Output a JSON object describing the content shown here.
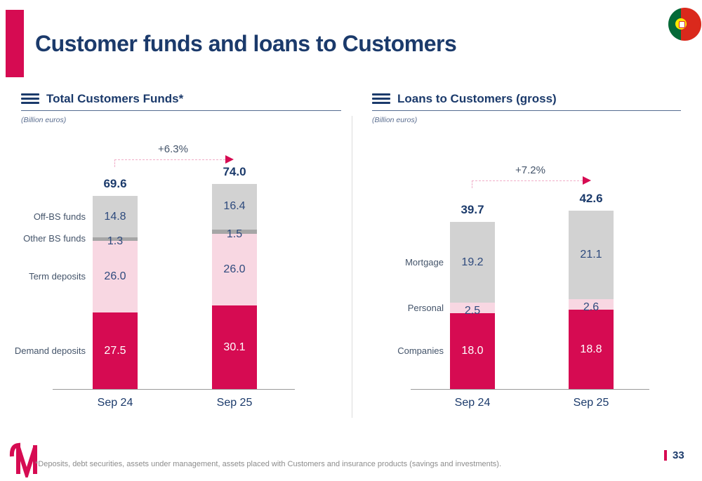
{
  "slide": {
    "title": "Customer funds and loans to Customers",
    "footnote": "*Deposits, debt securities, assets under management, assets placed with Customers and insurance products (savings and investments).",
    "page_number": "33"
  },
  "icons": {
    "flag": "portugal-flag",
    "logo": "millennium-m-logo",
    "chart_header_icon": "hamburger-lines-icon"
  },
  "colors": {
    "accent_magenta": "#d60b52",
    "navy_text": "#1b3a6b",
    "muted_label": "#44546a",
    "light_pink_segment": "#f8d7e2",
    "light_gray_segment": "#d2d2d2",
    "dark_gray_segment": "#a6a6a6",
    "footnote_gray": "#8c8c8c"
  },
  "chart_data": [
    {
      "type": "bar",
      "subtype": "stacked-column",
      "title": "Total Customers Funds*",
      "unit_label": "(Billion euros)",
      "categories": [
        "Sep 24",
        "Sep 25"
      ],
      "totals": [
        "69.6",
        "74.0"
      ],
      "change_label": "+6.3%",
      "series": [
        {
          "name": "Off-BS funds",
          "values": [
            14.8,
            16.4
          ],
          "color": "#d2d2d2",
          "label_color": "#2e4a7d"
        },
        {
          "name": "Other BS funds",
          "values": [
            1.3,
            1.5
          ],
          "color": "#a6a6a6",
          "label_color": "#2e4a7d"
        },
        {
          "name": "Term deposits",
          "values": [
            26.0,
            26.0
          ],
          "color": "#f8d7e2",
          "label_color": "#2e4a7d"
        },
        {
          "name": "Demand deposits",
          "values": [
            27.5,
            30.1
          ],
          "color": "#d60b52",
          "label_color": "#ffffff"
        }
      ],
      "legend_position": "left-of-first-bar",
      "grid": false
    },
    {
      "type": "bar",
      "subtype": "stacked-column",
      "title": "Loans to Customers (gross)",
      "unit_label": "(Billion euros)",
      "categories": [
        "Sep 24",
        "Sep 25"
      ],
      "totals": [
        "39.7",
        "42.6"
      ],
      "change_label": "+7.2%",
      "series": [
        {
          "name": "Mortgage",
          "values": [
            19.2,
            21.1
          ],
          "color": "#d2d2d2",
          "label_color": "#2e4a7d"
        },
        {
          "name": "Personal",
          "values": [
            2.5,
            2.6
          ],
          "color": "#f8d7e2",
          "label_color": "#2e4a7d"
        },
        {
          "name": "Companies",
          "values": [
            18.0,
            18.8
          ],
          "color": "#d60b52",
          "label_color": "#ffffff"
        }
      ],
      "legend_position": "left-of-first-bar",
      "grid": false
    }
  ]
}
